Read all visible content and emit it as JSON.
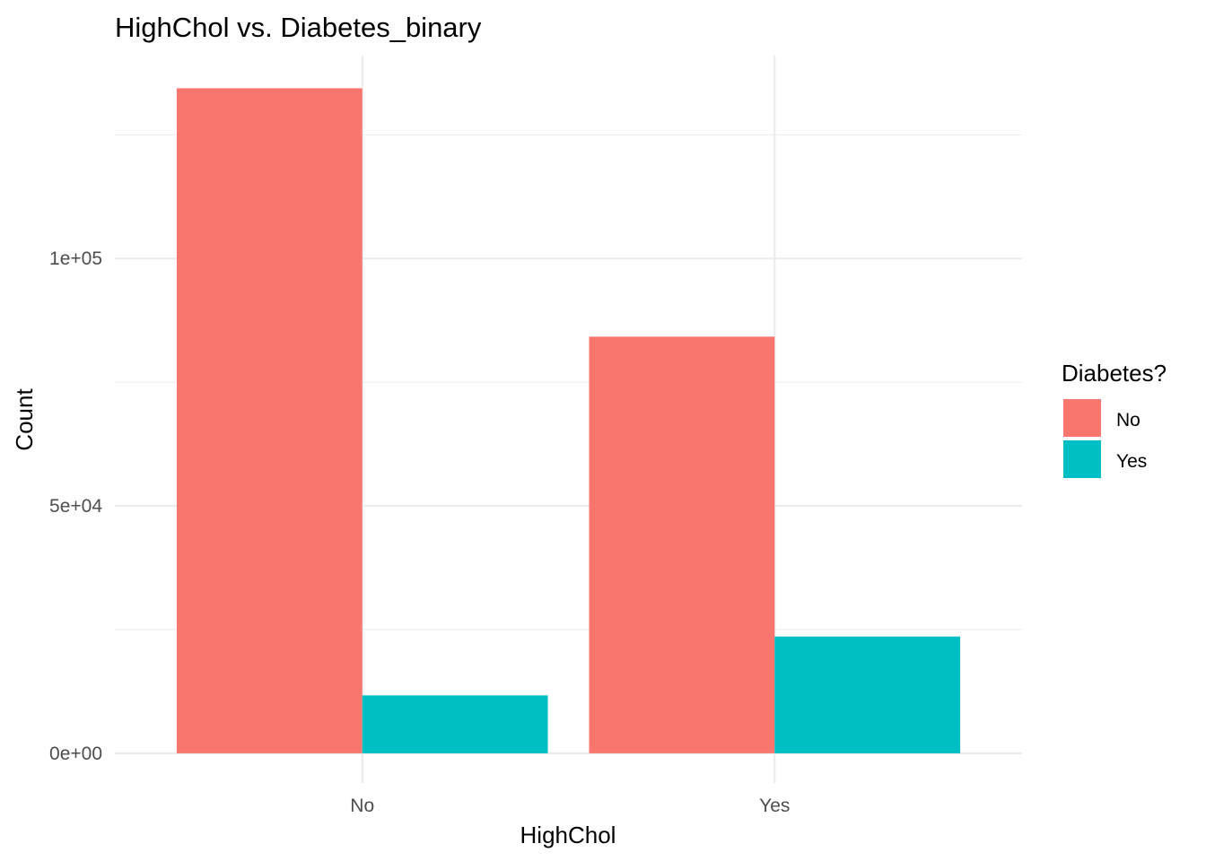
{
  "chart_data": {
    "type": "bar",
    "title": "HighChol vs. Diabetes_binary",
    "xlabel": "HighChol",
    "ylabel": "Count",
    "categories": [
      "No",
      "Yes"
    ],
    "series": [
      {
        "name": "No",
        "color": "#F8766D",
        "values": [
          134400,
          84200
        ]
      },
      {
        "name": "Yes",
        "color": "#00BFC4",
        "values": [
          11700,
          23600
        ]
      }
    ],
    "ylim": [
      -6000,
      141000
    ],
    "y_ticks": [
      {
        "value": 0,
        "label": "0e+00"
      },
      {
        "value": 50000,
        "label": "5e+04"
      },
      {
        "value": 100000,
        "label": "1e+05"
      }
    ],
    "y_minor_ticks": [
      25000,
      75000,
      125000
    ],
    "legend": {
      "title": "Diabetes?",
      "placement": "right",
      "entries": [
        "No",
        "Yes"
      ]
    },
    "grid": true,
    "theme": "minimal"
  }
}
